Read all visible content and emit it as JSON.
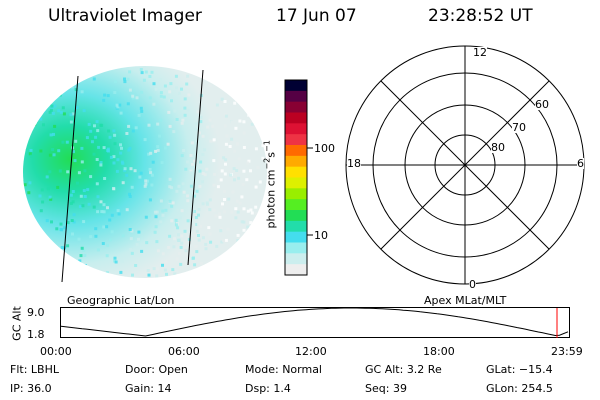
{
  "header": {
    "instrument": "Ultraviolet Imager",
    "date": "17 Jun 07",
    "time": "23:28:52 UT"
  },
  "geo_panel": {
    "label": "Geographic Lat/Lon"
  },
  "colorbar": {
    "label_main": "photon cm",
    "label_exp1": "−2",
    "label_mid": "s",
    "label_exp2": "−1",
    "ticks": [
      "100",
      "10"
    ],
    "colors": [
      "#000033",
      "#550044",
      "#880033",
      "#bb0022",
      "#dd1133",
      "#ee3344",
      "#ff6a00",
      "#ffaa00",
      "#ffe000",
      "#ddf000",
      "#99ee00",
      "#55ee22",
      "#22dd55",
      "#22ddaa",
      "#44ddee",
      "#99eeee",
      "#cceeee",
      "#eeeeee"
    ]
  },
  "polar_panel": {
    "label": "Apex MLat/MLT",
    "mlt_labels": {
      "top": "12",
      "left": "18",
      "right": "6",
      "bottom": "0"
    },
    "lat_labels": [
      "60",
      "70",
      "80"
    ]
  },
  "altitude_plot": {
    "ylabel": "GC Alt",
    "yticks": [
      "9.0",
      "1.8"
    ],
    "xticks": [
      "00:00",
      "06:00",
      "12:00",
      "18:00",
      "23:59"
    ],
    "current_marker_time_hours": 23.48
  },
  "info": {
    "flt_label": "Flt:",
    "flt_value": "LBHL",
    "door_label": "Door:",
    "door_value": "Open",
    "mode_label": "Mode:",
    "mode_value": "Normal",
    "gcalt_label": "GC Alt:",
    "gcalt_value": "3.2 Re",
    "glat_label": "GLat:",
    "glat_value": "−15.4",
    "ip_label": "IP:",
    "ip_value": "36.0",
    "gain_label": "Gain:",
    "gain_value": "14",
    "dsp_label": "Dsp:",
    "dsp_value": "1.4",
    "seq_label": "Seq:",
    "seq_value": "39",
    "glon_label": "GLon:",
    "glon_value": "254.5"
  }
}
